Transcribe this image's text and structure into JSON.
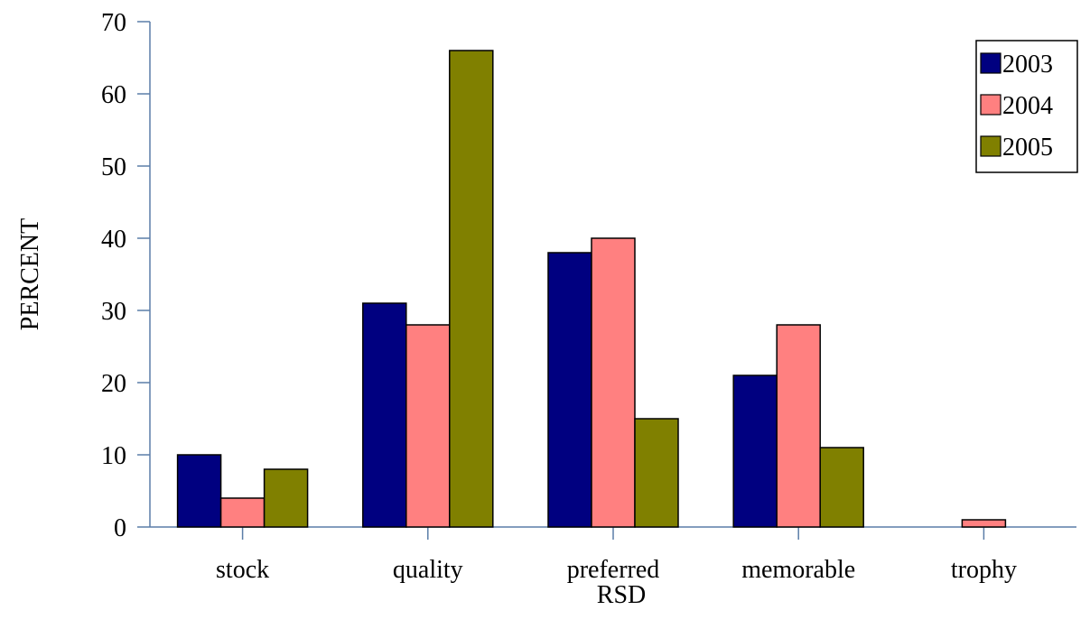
{
  "chart_data": {
    "type": "bar",
    "title": "",
    "xlabel": "RSD",
    "ylabel": "PERCENT",
    "categories": [
      "stock",
      "quality",
      "preferred",
      "memorable",
      "trophy"
    ],
    "series": [
      {
        "name": "2003",
        "color": "#000080",
        "values": [
          10,
          31,
          38,
          21,
          0
        ]
      },
      {
        "name": "2004",
        "color": "#FF8080",
        "values": [
          4,
          28,
          40,
          28,
          1
        ]
      },
      {
        "name": "2005",
        "color": "#808000",
        "values": [
          8,
          66,
          15,
          11,
          0
        ]
      }
    ],
    "ylim": [
      0,
      70
    ],
    "yticks": [
      0,
      10,
      20,
      30,
      40,
      50,
      60,
      70
    ],
    "grid": false,
    "legend": "top-right",
    "axis_color": "#5B7DA8"
  }
}
